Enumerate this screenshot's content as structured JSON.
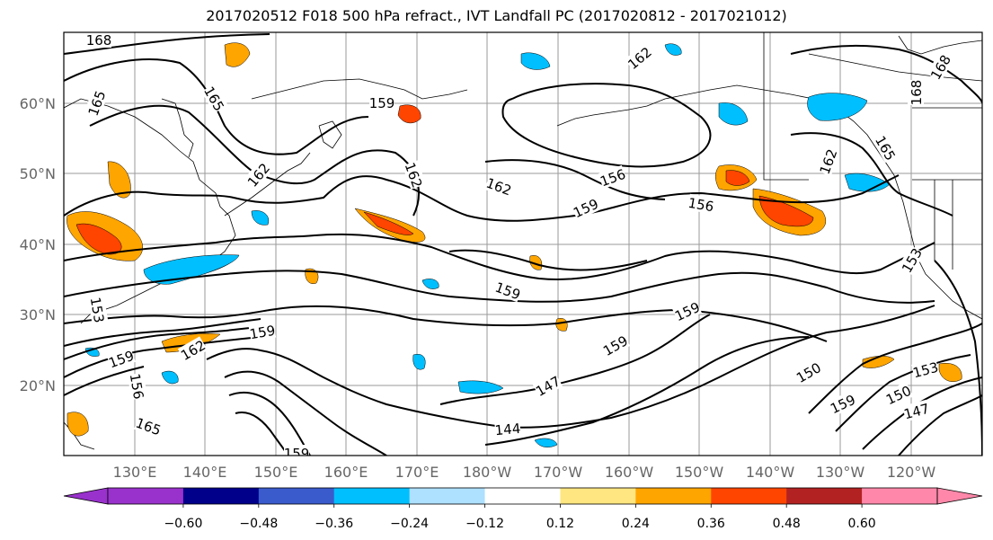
{
  "title": "2017020512 F018 500 hPa refract., IVT Landfall PC (2017020812 - 2017021012)",
  "map": {
    "lat_labels": [
      "60°N",
      "50°N",
      "40°N",
      "30°N",
      "20°N"
    ],
    "lon_labels": [
      "130°E",
      "140°E",
      "150°E",
      "160°E",
      "170°E",
      "180°W",
      "170°W",
      "160°W",
      "150°W",
      "140°W",
      "130°W",
      "120°W"
    ],
    "contour_labels": [
      "168",
      "165",
      "165",
      "162",
      "162",
      "159",
      "162",
      "162",
      "168",
      "168",
      "165",
      "162",
      "159",
      "156",
      "156",
      "153",
      "153",
      "156",
      "159",
      "159",
      "162",
      "159",
      "159",
      "147",
      "150",
      "153",
      "150",
      "159",
      "144",
      "147",
      "165",
      "159",
      "159"
    ]
  },
  "colorbar": {
    "tick_labels": [
      "−0.60",
      "−0.48",
      "−0.36",
      "−0.24",
      "−0.12",
      "0.12",
      "0.24",
      "0.36",
      "0.48",
      "0.60"
    ],
    "colors": [
      "#9932cc",
      "#00008b",
      "#3a5bcc",
      "#00bfff",
      "#aee0ff",
      "#ffffff",
      "#ffe680",
      "#ffa500",
      "#ff4500",
      "#b22222",
      "#ff88aa"
    ]
  }
}
